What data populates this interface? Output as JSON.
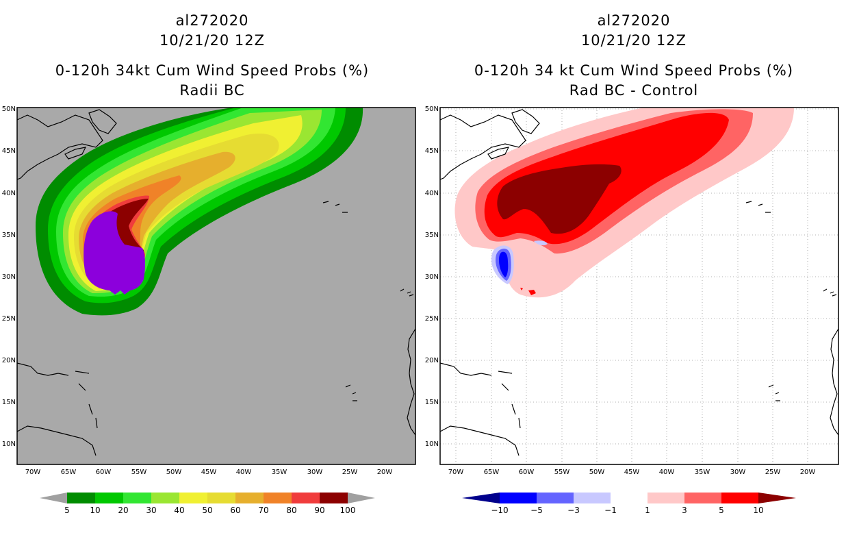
{
  "left_panel": {
    "storm_id": "al272020",
    "date": "10/21/20 12Z",
    "product": "0-120h 34kt Cum Wind Speed Probs (%)",
    "subtitle": "Radii BC",
    "colorbar": {
      "labels": [
        "5",
        "10",
        "20",
        "30",
        "40",
        "50",
        "60",
        "70",
        "80",
        "90",
        "100"
      ],
      "colors": [
        "#008c00",
        "#00c800",
        "#32e632",
        "#9ae632",
        "#f0f032",
        "#e6dc32",
        "#e6af2d",
        "#f08228",
        "#f03c3c",
        "#8c0000",
        "#8c00dc"
      ],
      "end_color": "#a0a0a0"
    },
    "background": "#a9a9a9"
  },
  "right_panel": {
    "storm_id": "al272020",
    "date": "10/21/20 12Z",
    "product": "0-120h 34 kt Cum Wind Speed Probs (%)",
    "subtitle": "Rad BC - Control",
    "colorbar": {
      "labels": [
        "−10",
        "−5",
        "−3",
        "−1",
        "1",
        "3",
        "5",
        "10"
      ],
      "colors": [
        "#00008c",
        "#0000ff",
        "#6464ff",
        "#c8c8ff",
        "#ffffff",
        "#ffc8c8",
        "#ff6464",
        "#ff0000",
        "#8c0000"
      ]
    },
    "background": "#ffffff"
  },
  "axes": {
    "lat_labels": [
      "50N",
      "45N",
      "40N",
      "35N",
      "30N",
      "25N",
      "20N",
      "15N",
      "10N"
    ],
    "lon_labels": [
      "70W",
      "65W",
      "60W",
      "55W",
      "50W",
      "45W",
      "40W",
      "35W",
      "30W",
      "25W",
      "20W"
    ]
  }
}
